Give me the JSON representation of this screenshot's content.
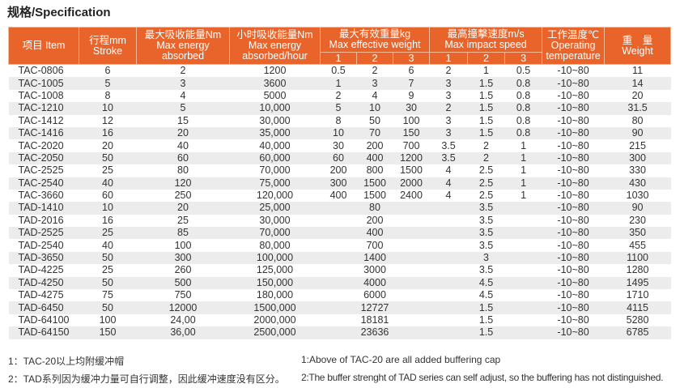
{
  "title": "规格/Specification",
  "header": {
    "item": "项目 Item",
    "stroke": [
      "行程mm",
      "Stroke"
    ],
    "max_energy": [
      "最大吸收能量Nm",
      "Max energy",
      "absorbed"
    ],
    "hour_energy": [
      "小时吸收能量Nm",
      "Max energy",
      "absorbed/hour"
    ],
    "weight_eff": [
      "最大有效重量kg",
      "Max effective weight"
    ],
    "speed": [
      "最高撞擊速度m/s",
      "Max impact speed"
    ],
    "temp": [
      "工作温度℃",
      "Operating",
      "temperature"
    ],
    "weight": [
      "重　量",
      "Weight"
    ],
    "sub": [
      "1",
      "2",
      "3",
      "1",
      "2",
      "3"
    ]
  },
  "rows": [
    [
      "TAC-0806",
      "6",
      "2",
      "1200",
      "0.5",
      "2",
      "6",
      "2",
      "1",
      "0.5",
      "-10~80",
      "11"
    ],
    [
      "TAC-1005",
      "5",
      "3",
      "3600",
      "1",
      "3",
      "7",
      "3",
      "1.5",
      "0.8",
      "-10~80",
      "14"
    ],
    [
      "TAC-1008",
      "8",
      "4",
      "5000",
      "2",
      "4",
      "9",
      "3",
      "1.5",
      "0.8",
      "-10~80",
      "20"
    ],
    [
      "TAC-1210",
      "10",
      "5",
      "10,000",
      "5",
      "10",
      "30",
      "2",
      "1.5",
      "0.8",
      "-10~80",
      "31.5"
    ],
    [
      "TAC-1412",
      "12",
      "15",
      "30,000",
      "8",
      "50",
      "100",
      "3",
      "1.5",
      "0.8",
      "-10~80",
      "80"
    ],
    [
      "TAC-1416",
      "16",
      "20",
      "35,000",
      "10",
      "70",
      "150",
      "3",
      "1.5",
      "0.8",
      "-10~80",
      "90"
    ],
    [
      "TAC-2020",
      "20",
      "40",
      "40,000",
      "30",
      "200",
      "700",
      "3.5",
      "2",
      "1",
      "-10~80",
      "215"
    ],
    [
      "TAC-2050",
      "50",
      "60",
      "60,000",
      "60",
      "400",
      "1200",
      "3.5",
      "2",
      "1",
      "-10~80",
      "300"
    ],
    [
      "TAC-2525",
      "25",
      "80",
      "70,000",
      "200",
      "800",
      "1500",
      "4",
      "2.5",
      "1",
      "-10~80",
      "330"
    ],
    [
      "TAC-2540",
      "40",
      "120",
      "75,000",
      "300",
      "1500",
      "2000",
      "4",
      "2.5",
      "1",
      "-10~80",
      "430"
    ],
    [
      "TAC-3660",
      "60",
      "250",
      "120,000",
      "400",
      "1500",
      "2400",
      "4",
      "2.5",
      "1",
      "-10~80",
      "1030"
    ],
    [
      "TAD-1410",
      "10",
      "20",
      "25,000",
      "",
      "80",
      "",
      "",
      "3.5",
      "",
      "-10~80",
      "90"
    ],
    [
      "TAD-2016",
      "16",
      "25",
      "30,000",
      "",
      "200",
      "",
      "",
      "3.5",
      "",
      "-10~80",
      "230"
    ],
    [
      "TAD-2525",
      "25",
      "85",
      "70,000",
      "",
      "400",
      "",
      "",
      "3.5",
      "",
      "-10~80",
      "350"
    ],
    [
      "TAD-2540",
      "40",
      "100",
      "80,000",
      "",
      "700",
      "",
      "",
      "3.5",
      "",
      "-10~80",
      "455"
    ],
    [
      "TAD-3650",
      "50",
      "300",
      "100,000",
      "",
      "1400",
      "",
      "",
      "3",
      "",
      "-10~80",
      "1100"
    ],
    [
      "TAD-4225",
      "25",
      "260",
      "125,000",
      "",
      "3000",
      "",
      "",
      "3.5",
      "",
      "-10~80",
      "1280"
    ],
    [
      "TAD-4250",
      "50",
      "500",
      "150,000",
      "",
      "4000",
      "",
      "",
      "4.5",
      "",
      "-10~80",
      "1495"
    ],
    [
      "TAD-4275",
      "75",
      "750",
      "180,000",
      "",
      "6000",
      "",
      "",
      "4.5",
      "",
      "-10~80",
      "1710"
    ],
    [
      "TAD-6450",
      "50",
      "12000",
      "1500,000",
      "",
      "12727",
      "",
      "",
      "1.5",
      "",
      "-10~80",
      "4115"
    ],
    [
      "TAD-64100",
      "100",
      "24,00",
      "2000,000",
      "",
      "18181",
      "",
      "",
      "1.5",
      "",
      "-10~80",
      "5280"
    ],
    [
      "TAD-64150",
      "150",
      "36,00",
      "2500,000",
      "",
      "23636",
      "",
      "",
      "1.5",
      "",
      "-10~80",
      "6785"
    ]
  ],
  "notes": {
    "cn1": "1：TAC-20以上均附缓冲帽",
    "cn2": "2：TAD系列因为缓冲力量可自行调整，因此缓冲速度没有区分。",
    "en1": "1:Above of TAC-20 are all added buffering cap",
    "en2": "2:The buffer strenght of TAD series can self adjust, so the buffering has not distinguished."
  },
  "colors": {
    "header": "#e8642a",
    "row_alt": "#ececec"
  }
}
